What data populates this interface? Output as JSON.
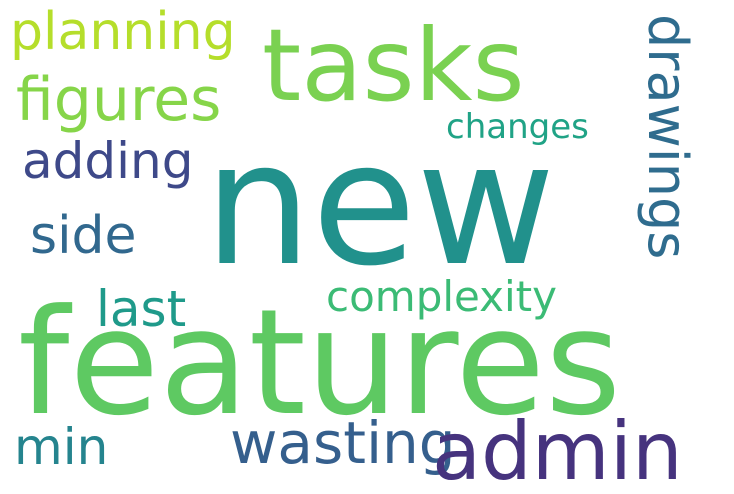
{
  "words": {
    "planning": {
      "text": "planning",
      "color": "#b5de2b"
    },
    "tasks": {
      "text": "tasks",
      "color": "#7ad151"
    },
    "figures": {
      "text": "figures",
      "color": "#86d549"
    },
    "changes": {
      "text": "changes",
      "color": "#20a386"
    },
    "adding": {
      "text": "adding",
      "color": "#3e4989"
    },
    "new": {
      "text": "new",
      "color": "#21918c"
    },
    "drawings": {
      "text": "drawings",
      "color": "#2f6c8e"
    },
    "side": {
      "text": "side",
      "color": "#31688e"
    },
    "complexity": {
      "text": "complexity",
      "color": "#3bbb75"
    },
    "last": {
      "text": "last",
      "color": "#1f9a8a"
    },
    "features": {
      "text": "features",
      "color": "#5ec962"
    },
    "min": {
      "text": "min",
      "color": "#25848e"
    },
    "wasting": {
      "text": "wasting",
      "color": "#355f8d"
    },
    "admin": {
      "text": "admin",
      "color": "#46337e"
    }
  }
}
